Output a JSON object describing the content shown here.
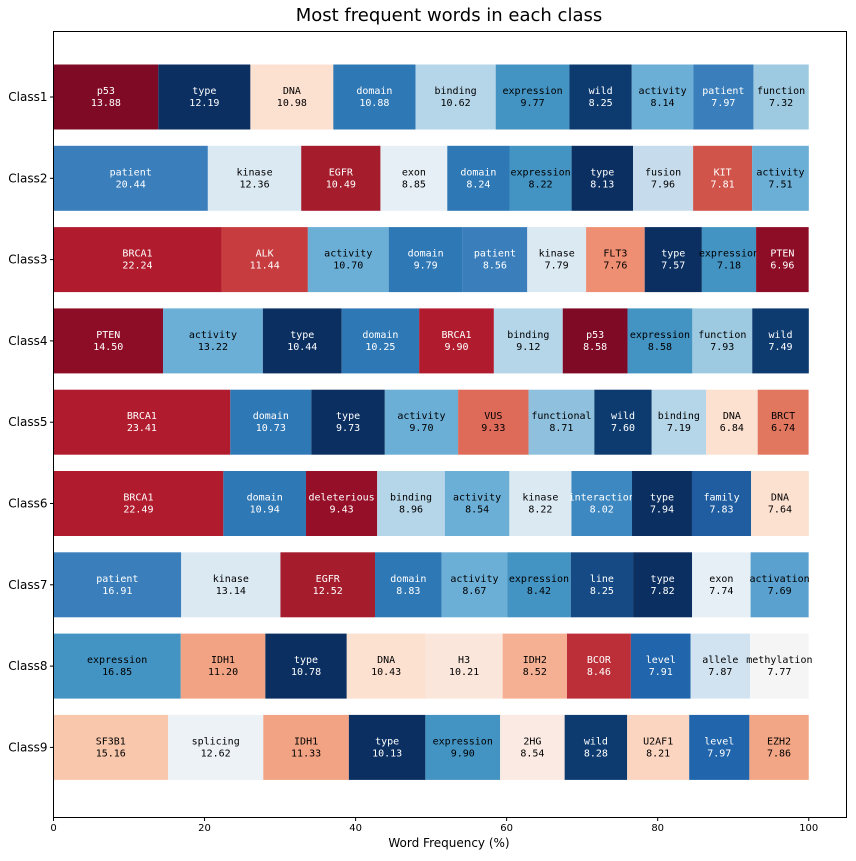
{
  "chart_data": {
    "type": "bar",
    "orientation": "horizontal",
    "stacked": true,
    "title": "Most frequent words in each class",
    "xlabel": "Word Frequency (%)",
    "ylabel": "",
    "xlim": [
      0,
      105
    ],
    "xticks": [
      "0",
      "20",
      "40",
      "60",
      "80",
      "100"
    ],
    "grid": false,
    "categories": [
      "Class1",
      "Class2",
      "Class3",
      "Class4",
      "Class5",
      "Class6",
      "Class7",
      "Class8",
      "Class9"
    ],
    "rows": [
      {
        "class": "Class1",
        "segments": [
          {
            "word": "p53",
            "value": 13.88,
            "pct": "13.88",
            "color": "#7f0a25"
          },
          {
            "word": "type",
            "value": 12.19,
            "pct": "12.19",
            "color": "#0b2f61"
          },
          {
            "word": "DNA",
            "value": 10.98,
            "pct": "10.98",
            "color": "#fce0d0"
          },
          {
            "word": "domain",
            "value": 10.88,
            "pct": "10.88",
            "color": "#2f78b6"
          },
          {
            "word": "binding",
            "value": 10.62,
            "pct": "10.62",
            "color": "#b5d5e8"
          },
          {
            "word": "expression",
            "value": 9.77,
            "pct": "9.77",
            "color": "#4393c3"
          },
          {
            "word": "wild",
            "value": 8.25,
            "pct": "8.25",
            "color": "#0d3b70"
          },
          {
            "word": "activity",
            "value": 8.14,
            "pct": "8.14",
            "color": "#6baed6"
          },
          {
            "word": "patient",
            "value": 7.97,
            "pct": "7.97",
            "color": "#3a7fbc"
          },
          {
            "word": "function",
            "value": 7.32,
            "pct": "7.32",
            "color": "#9ecae1"
          }
        ]
      },
      {
        "class": "Class2",
        "segments": [
          {
            "word": "patient",
            "value": 20.44,
            "pct": "20.44",
            "color": "#3a7fbc"
          },
          {
            "word": "kinase",
            "value": 12.36,
            "pct": "12.36",
            "color": "#dbe9f3"
          },
          {
            "word": "EGFR",
            "value": 10.49,
            "pct": "10.49",
            "color": "#a51c2c"
          },
          {
            "word": "exon",
            "value": 8.85,
            "pct": "8.85",
            "color": "#e6eff6"
          },
          {
            "word": "domain",
            "value": 8.24,
            "pct": "8.24",
            "color": "#2f78b6"
          },
          {
            "word": "expression",
            "value": 8.22,
            "pct": "8.22",
            "color": "#4393c3"
          },
          {
            "word": "type",
            "value": 8.13,
            "pct": "8.13",
            "color": "#0b2f61"
          },
          {
            "word": "fusion",
            "value": 7.96,
            "pct": "7.96",
            "color": "#c6dcec"
          },
          {
            "word": "KIT",
            "value": 7.81,
            "pct": "7.81",
            "color": "#d0544a"
          },
          {
            "word": "activity",
            "value": 7.51,
            "pct": "7.51",
            "color": "#6baed6"
          }
        ]
      },
      {
        "class": "Class3",
        "segments": [
          {
            "word": "BRCA1",
            "value": 22.24,
            "pct": "22.24",
            "color": "#b01c2e"
          },
          {
            "word": "ALK",
            "value": 11.44,
            "pct": "11.44",
            "color": "#c63c3f"
          },
          {
            "word": "activity",
            "value": 10.7,
            "pct": "10.70",
            "color": "#6baed6"
          },
          {
            "word": "domain",
            "value": 9.79,
            "pct": "9.79",
            "color": "#2f78b6"
          },
          {
            "word": "patient",
            "value": 8.56,
            "pct": "8.56",
            "color": "#3a7fbc"
          },
          {
            "word": "kinase",
            "value": 7.79,
            "pct": "7.79",
            "color": "#dbe9f3"
          },
          {
            "word": "FLT3",
            "value": 7.76,
            "pct": "7.76",
            "color": "#ee8f73"
          },
          {
            "word": "type",
            "value": 7.57,
            "pct": "7.57",
            "color": "#0b2f61"
          },
          {
            "word": "expression",
            "value": 7.18,
            "pct": "7.18",
            "color": "#4393c3"
          },
          {
            "word": "PTEN",
            "value": 6.96,
            "pct": "6.96",
            "color": "#8e0d26"
          }
        ]
      },
      {
        "class": "Class4",
        "segments": [
          {
            "word": "PTEN",
            "value": 14.5,
            "pct": "14.50",
            "color": "#8e0d26"
          },
          {
            "word": "activity",
            "value": 13.22,
            "pct": "13.22",
            "color": "#6baed6"
          },
          {
            "word": "type",
            "value": 10.44,
            "pct": "10.44",
            "color": "#0b2f61"
          },
          {
            "word": "domain",
            "value": 10.25,
            "pct": "10.25",
            "color": "#2f78b6"
          },
          {
            "word": "BRCA1",
            "value": 9.9,
            "pct": "9.90",
            "color": "#b01c2e"
          },
          {
            "word": "binding",
            "value": 9.12,
            "pct": "9.12",
            "color": "#b5d5e8"
          },
          {
            "word": "p53",
            "value": 8.58,
            "pct": "8.58",
            "color": "#7f0a25"
          },
          {
            "word": "expression",
            "value": 8.58,
            "pct": "8.58",
            "color": "#4393c3"
          },
          {
            "word": "function",
            "value": 7.93,
            "pct": "7.93",
            "color": "#9ecae1"
          },
          {
            "word": "wild",
            "value": 7.49,
            "pct": "7.49",
            "color": "#0d3b70"
          }
        ]
      },
      {
        "class": "Class5",
        "segments": [
          {
            "word": "BRCA1",
            "value": 23.41,
            "pct": "23.41",
            "color": "#b01c2e"
          },
          {
            "word": "domain",
            "value": 10.73,
            "pct": "10.73",
            "color": "#2f78b6"
          },
          {
            "word": "type",
            "value": 9.73,
            "pct": "9.73",
            "color": "#0b2f61"
          },
          {
            "word": "activity",
            "value": 9.7,
            "pct": "9.70",
            "color": "#6baed6"
          },
          {
            "word": "VUS",
            "value": 9.33,
            "pct": "9.33",
            "color": "#de6a59"
          },
          {
            "word": "functional",
            "value": 8.71,
            "pct": "8.71",
            "color": "#8fc1de"
          },
          {
            "word": "wild",
            "value": 7.6,
            "pct": "7.60",
            "color": "#0d3b70"
          },
          {
            "word": "binding",
            "value": 7.19,
            "pct": "7.19",
            "color": "#b5d5e8"
          },
          {
            "word": "DNA",
            "value": 6.84,
            "pct": "6.84",
            "color": "#fce0d0"
          },
          {
            "word": "BRCT",
            "value": 6.74,
            "pct": "6.74",
            "color": "#e27760"
          }
        ]
      },
      {
        "class": "Class6",
        "segments": [
          {
            "word": "BRCA1",
            "value": 22.49,
            "pct": "22.49",
            "color": "#b01c2e"
          },
          {
            "word": "domain",
            "value": 10.94,
            "pct": "10.94",
            "color": "#2f78b6"
          },
          {
            "word": "deleterious",
            "value": 9.43,
            "pct": "9.43",
            "color": "#960f28"
          },
          {
            "word": "binding",
            "value": 8.96,
            "pct": "8.96",
            "color": "#b5d5e8"
          },
          {
            "word": "activity",
            "value": 8.54,
            "pct": "8.54",
            "color": "#6baed6"
          },
          {
            "word": "kinase",
            "value": 8.22,
            "pct": "8.22",
            "color": "#dbe9f3"
          },
          {
            "word": "interaction",
            "value": 8.02,
            "pct": "8.02",
            "color": "#3d88c0"
          },
          {
            "word": "type",
            "value": 7.94,
            "pct": "7.94",
            "color": "#0b2f61"
          },
          {
            "word": "family",
            "value": 7.83,
            "pct": "7.83",
            "color": "#1f5da0"
          },
          {
            "word": "DNA",
            "value": 7.64,
            "pct": "7.64",
            "color": "#fce0d0"
          }
        ]
      },
      {
        "class": "Class7",
        "segments": [
          {
            "word": "patient",
            "value": 16.91,
            "pct": "16.91",
            "color": "#3a7fbc"
          },
          {
            "word": "kinase",
            "value": 13.14,
            "pct": "13.14",
            "color": "#dbe9f3"
          },
          {
            "word": "EGFR",
            "value": 12.52,
            "pct": "12.52",
            "color": "#a51c2c"
          },
          {
            "word": "domain",
            "value": 8.83,
            "pct": "8.83",
            "color": "#2f78b6"
          },
          {
            "word": "activity",
            "value": 8.67,
            "pct": "8.67",
            "color": "#6baed6"
          },
          {
            "word": "expression",
            "value": 8.42,
            "pct": "8.42",
            "color": "#4393c3"
          },
          {
            "word": "line",
            "value": 8.25,
            "pct": "8.25",
            "color": "#154a85"
          },
          {
            "word": "type",
            "value": 7.82,
            "pct": "7.82",
            "color": "#0b2f61"
          },
          {
            "word": "exon",
            "value": 7.74,
            "pct": "7.74",
            "color": "#e6eff6"
          },
          {
            "word": "activation",
            "value": 7.69,
            "pct": "7.69",
            "color": "#5aa1cf"
          }
        ]
      },
      {
        "class": "Class8",
        "segments": [
          {
            "word": "expression",
            "value": 16.85,
            "pct": "16.85",
            "color": "#4393c3"
          },
          {
            "word": "IDH1",
            "value": 11.2,
            "pct": "11.20",
            "color": "#f2a383"
          },
          {
            "word": "type",
            "value": 10.78,
            "pct": "10.78",
            "color": "#0b2f61"
          },
          {
            "word": "DNA",
            "value": 10.43,
            "pct": "10.43",
            "color": "#fce0d0"
          },
          {
            "word": "H3",
            "value": 10.21,
            "pct": "10.21",
            "color": "#fbe6dc"
          },
          {
            "word": "IDH2",
            "value": 8.52,
            "pct": "8.52",
            "color": "#f5b093"
          },
          {
            "word": "BCOR",
            "value": 8.46,
            "pct": "8.46",
            "color": "#bd2f38"
          },
          {
            "word": "level",
            "value": 7.91,
            "pct": "7.91",
            "color": "#2166ac"
          },
          {
            "word": "allele",
            "value": 7.87,
            "pct": "7.87",
            "color": "#d1e3f0"
          },
          {
            "word": "methylation",
            "value": 7.77,
            "pct": "7.77",
            "color": "#f5f5f5"
          }
        ]
      },
      {
        "class": "Class9",
        "segments": [
          {
            "word": "SF3B1",
            "value": 15.16,
            "pct": "15.16",
            "color": "#f8c7ac"
          },
          {
            "word": "splicing",
            "value": 12.62,
            "pct": "12.62",
            "color": "#edf2f7"
          },
          {
            "word": "IDH1",
            "value": 11.33,
            "pct": "11.33",
            "color": "#f2a383"
          },
          {
            "word": "type",
            "value": 10.13,
            "pct": "10.13",
            "color": "#0b2f61"
          },
          {
            "word": "expression",
            "value": 9.9,
            "pct": "9.90",
            "color": "#4393c3"
          },
          {
            "word": "2HG",
            "value": 8.54,
            "pct": "8.54",
            "color": "#fbeae3"
          },
          {
            "word": "wild",
            "value": 8.28,
            "pct": "8.28",
            "color": "#0d3b70"
          },
          {
            "word": "U2AF1",
            "value": 8.21,
            "pct": "8.21",
            "color": "#fbd5c0"
          },
          {
            "word": "level",
            "value": 7.97,
            "pct": "7.97",
            "color": "#2166ac"
          },
          {
            "word": "EZH2",
            "value": 7.86,
            "pct": "7.86",
            "color": "#f3a686"
          }
        ]
      }
    ]
  }
}
